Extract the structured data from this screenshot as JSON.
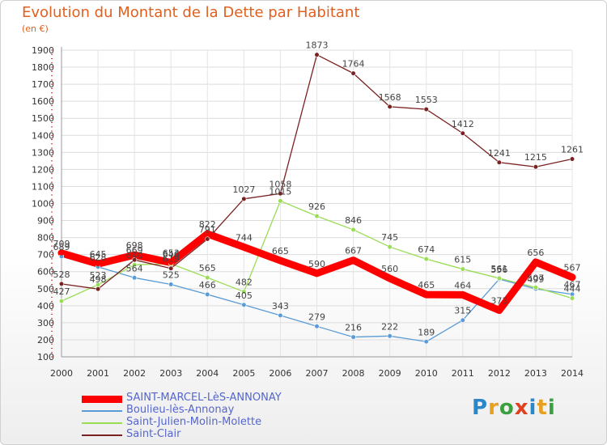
{
  "title": "Evolution du Montant de la Dette par Habitant",
  "subtitle": "(en €)",
  "brand": {
    "name": "Proxiti",
    "letters": [
      {
        "ch": "P",
        "color": "#2a88c8"
      },
      {
        "ch": "r",
        "color": "#e8a020"
      },
      {
        "ch": "o",
        "color": "#3aa040"
      },
      {
        "ch": "x",
        "color": "#e04020"
      },
      {
        "ch": "i",
        "color": "#2a88c8"
      },
      {
        "ch": "t",
        "color": "#e8a020"
      },
      {
        "ch": "i",
        "color": "#3aa040"
      }
    ]
  },
  "chart_data": {
    "type": "line",
    "title": "Evolution du Montant de la Dette par Habitant",
    "subtitle": "(en €)",
    "xlabel": "",
    "ylabel": "",
    "x": [
      "2000",
      "2001",
      "2002",
      "2003",
      "2004",
      "2005",
      "2006",
      "2007",
      "2008",
      "2009",
      "2010",
      "2011",
      "2012",
      "2013",
      "2014"
    ],
    "ylim": [
      100,
      1900
    ],
    "yticks": [
      100,
      200,
      300,
      400,
      500,
      600,
      700,
      800,
      900,
      1000,
      1100,
      1200,
      1300,
      1400,
      1500,
      1600,
      1700,
      1800,
      1900
    ],
    "grid": true,
    "legend_position": "bottom-left",
    "series": [
      {
        "name": "SAINT-MARCEL-LèS-ANNONAY",
        "color": "#ff0000",
        "values": [
          709,
          645,
          698,
          653,
          822,
          744,
          665,
          590,
          667,
          560,
          465,
          464,
          373,
          656,
          567
        ],
        "labels": [
          "709",
          "645",
          "698",
          "653",
          "822",
          "744",
          "665",
          "590",
          "667",
          "560",
          "465",
          "464",
          "373",
          "656",
          "567"
        ]
      },
      {
        "name": "Boulieu-lès-Annonay",
        "color": "#5b9bd5",
        "values": [
          689,
          628,
          564,
          525,
          466,
          405,
          343,
          279,
          216,
          222,
          189,
          315,
          556,
          499,
          467
        ],
        "labels": [
          "689",
          "628",
          "564",
          "525",
          "466",
          "405",
          "343",
          "279",
          "216",
          "222",
          "189",
          "315",
          "556",
          "499",
          "467"
        ]
      },
      {
        "name": "Saint-Julien-Molin-Molette",
        "color": "#99dd55",
        "values": [
          427,
          523,
          640,
          646,
          565,
          482,
          1015,
          926,
          846,
          745,
          674,
          615,
          561,
          507,
          444
        ],
        "labels": [
          "427",
          "523",
          "640",
          "646",
          "565",
          "482",
          "1015",
          "926",
          "846",
          "745",
          "674",
          "615",
          "561",
          "507",
          "444"
        ]
      },
      {
        "name": "Saint-Clair",
        "color": "#7a2222",
        "values": [
          528,
          498,
          669,
          619,
          791,
          1027,
          1058,
          1873,
          1764,
          1568,
          1553,
          1412,
          1241,
          1215,
          1261
        ],
        "labels": [
          "528",
          "498",
          "669",
          "619",
          "791",
          "1027",
          "1058",
          "1873",
          "1764",
          "1568",
          "1553",
          "1412",
          "1241",
          "1215",
          "1261"
        ]
      }
    ]
  }
}
